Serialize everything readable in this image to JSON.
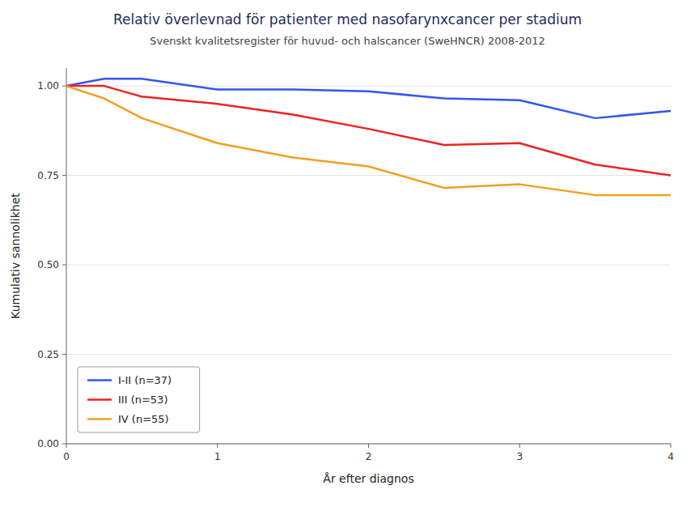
{
  "chart_data": {
    "type": "line",
    "title": "Relativ överlevnad för patienter med nasofarynxcancer per stadium",
    "subtitle": "Svenskt kvalitetsregister för huvud- och halscancer (SweHNCR) 2008-2012",
    "xlabel": "År efter diagnos",
    "ylabel": "Kumulativ sannolikhet",
    "x": [
      0,
      0.25,
      0.5,
      1.0,
      1.5,
      2.0,
      2.5,
      3.0,
      3.5,
      4.0
    ],
    "series": [
      {
        "name": "I-II (n=37)",
        "color": "#3355ee",
        "values": [
          1.0,
          1.02,
          1.02,
          0.99,
          0.99,
          0.985,
          0.965,
          0.96,
          0.91,
          0.93
        ]
      },
      {
        "name": "III (n=53)",
        "color": "#ee2222",
        "values": [
          1.0,
          1.0,
          0.97,
          0.95,
          0.92,
          0.88,
          0.835,
          0.84,
          0.78,
          0.75
        ]
      },
      {
        "name": "IV (n=55)",
        "color": "#f0a020",
        "values": [
          1.0,
          0.965,
          0.91,
          0.84,
          0.8,
          0.775,
          0.715,
          0.725,
          0.695,
          0.695
        ]
      }
    ],
    "xlim": [
      0,
      4
    ],
    "ylim": [
      0.0,
      1.05
    ],
    "xticks": [
      0,
      1,
      2,
      3,
      4
    ],
    "yticks": [
      {
        "value": 0.0,
        "label": "0.00"
      },
      {
        "value": 0.25,
        "label": "0.25"
      },
      {
        "value": 0.5,
        "label": "0.50"
      },
      {
        "value": 0.75,
        "label": "0.75"
      },
      {
        "value": 1.0,
        "label": "1.00"
      }
    ],
    "grid": true,
    "legend": "lower left"
  }
}
